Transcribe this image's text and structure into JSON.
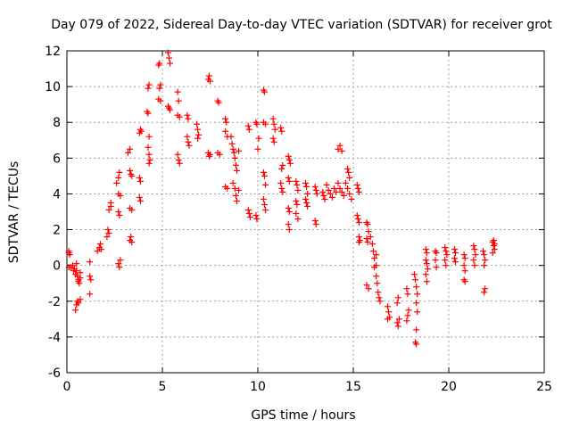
{
  "chart_data": {
    "type": "scatter",
    "title": "Day 079 of 2022, Sidereal Day-to-day VTEC variation (SDTVAR) for receiver grot",
    "xlabel": "GPS time / hours",
    "ylabel": "SDTVAR / TECUs",
    "xlim": [
      0,
      25
    ],
    "ylim": [
      -6,
      12
    ],
    "x_ticks": [
      0,
      5,
      10,
      15,
      20,
      25
    ],
    "y_ticks": [
      -6,
      -4,
      -2,
      0,
      2,
      4,
      6,
      8,
      10,
      12
    ],
    "grid": true,
    "marker": "+",
    "marker_color": "#ff0000",
    "series": [
      {
        "name": "SDTVAR",
        "points": [
          [
            0.1,
            0.8
          ],
          [
            0.1,
            0.7
          ],
          [
            0.15,
            0.6
          ],
          [
            0.1,
            -0.1
          ],
          [
            0.2,
            -0.1
          ],
          [
            0.3,
            0.0
          ],
          [
            0.35,
            -0.3
          ],
          [
            0.4,
            -0.2
          ],
          [
            0.45,
            -0.5
          ],
          [
            0.5,
            -0.3
          ],
          [
            0.5,
            0.1
          ],
          [
            0.55,
            -0.6
          ],
          [
            0.6,
            -0.8
          ],
          [
            0.6,
            -0.9
          ],
          [
            0.65,
            -1.0
          ],
          [
            0.7,
            -0.7
          ],
          [
            0.7,
            -0.4
          ],
          [
            0.45,
            -2.5
          ],
          [
            0.5,
            -2.2
          ],
          [
            0.55,
            -2.0
          ],
          [
            0.6,
            -2.1
          ],
          [
            0.7,
            -1.9
          ],
          [
            1.2,
            0.2
          ],
          [
            1.2,
            -0.6
          ],
          [
            1.25,
            -0.8
          ],
          [
            1.2,
            -1.6
          ],
          [
            1.6,
            0.8
          ],
          [
            1.7,
            1.0
          ],
          [
            1.75,
            1.2
          ],
          [
            1.8,
            0.9
          ],
          [
            2.1,
            1.6
          ],
          [
            2.15,
            2.0
          ],
          [
            2.2,
            1.8
          ],
          [
            2.2,
            3.1
          ],
          [
            2.3,
            3.5
          ],
          [
            2.3,
            3.3
          ],
          [
            2.6,
            4.6
          ],
          [
            2.7,
            4.9
          ],
          [
            2.75,
            5.2
          ],
          [
            2.7,
            4.0
          ],
          [
            2.8,
            3.9
          ],
          [
            2.7,
            3.0
          ],
          [
            2.75,
            2.8
          ],
          [
            2.7,
            0.1
          ],
          [
            2.75,
            -0.1
          ],
          [
            2.8,
            0.3
          ],
          [
            3.2,
            6.3
          ],
          [
            3.3,
            6.5
          ],
          [
            3.3,
            5.3
          ],
          [
            3.35,
            5.1
          ],
          [
            3.4,
            5.0
          ],
          [
            3.3,
            3.2
          ],
          [
            3.4,
            3.1
          ],
          [
            3.3,
            1.4
          ],
          [
            3.35,
            1.6
          ],
          [
            3.4,
            1.3
          ],
          [
            3.8,
            7.4
          ],
          [
            3.85,
            7.6
          ],
          [
            3.9,
            7.5
          ],
          [
            3.8,
            4.9
          ],
          [
            3.85,
            4.7
          ],
          [
            3.8,
            3.8
          ],
          [
            3.85,
            3.6
          ],
          [
            4.2,
            8.6
          ],
          [
            4.25,
            8.5
          ],
          [
            4.3,
            10.1
          ],
          [
            4.25,
            9.9
          ],
          [
            4.3,
            7.2
          ],
          [
            4.25,
            6.6
          ],
          [
            4.3,
            6.2
          ],
          [
            4.35,
            5.9
          ],
          [
            4.3,
            5.7
          ],
          [
            4.8,
            11.2
          ],
          [
            4.85,
            11.3
          ],
          [
            4.9,
            10.1
          ],
          [
            4.85,
            9.9
          ],
          [
            4.8,
            9.3
          ],
          [
            4.9,
            9.2
          ],
          [
            5.3,
            11.9
          ],
          [
            5.35,
            11.6
          ],
          [
            5.4,
            11.3
          ],
          [
            5.3,
            8.9
          ],
          [
            5.35,
            8.8
          ],
          [
            5.4,
            8.7
          ],
          [
            5.8,
            9.7
          ],
          [
            5.85,
            9.2
          ],
          [
            5.8,
            8.4
          ],
          [
            5.9,
            8.3
          ],
          [
            5.8,
            6.2
          ],
          [
            5.85,
            5.9
          ],
          [
            5.9,
            5.7
          ],
          [
            6.3,
            8.4
          ],
          [
            6.35,
            8.2
          ],
          [
            6.3,
            7.2
          ],
          [
            6.35,
            6.9
          ],
          [
            6.4,
            6.7
          ],
          [
            6.8,
            7.9
          ],
          [
            6.85,
            7.6
          ],
          [
            6.9,
            7.3
          ],
          [
            6.85,
            7.1
          ],
          [
            7.4,
            10.4
          ],
          [
            7.45,
            10.6
          ],
          [
            7.5,
            10.3
          ],
          [
            7.4,
            6.3
          ],
          [
            7.45,
            6.1
          ],
          [
            7.5,
            6.2
          ],
          [
            7.9,
            9.2
          ],
          [
            7.95,
            9.1
          ],
          [
            7.9,
            6.3
          ],
          [
            8.0,
            6.2
          ],
          [
            8.3,
            8.2
          ],
          [
            8.35,
            8.0
          ],
          [
            8.3,
            7.5
          ],
          [
            8.4,
            7.2
          ],
          [
            8.3,
            4.4
          ],
          [
            8.4,
            4.3
          ],
          [
            8.6,
            7.2
          ],
          [
            8.65,
            6.8
          ],
          [
            8.7,
            6.5
          ],
          [
            8.75,
            6.3
          ],
          [
            8.8,
            6.0
          ],
          [
            8.85,
            5.6
          ],
          [
            8.9,
            5.3
          ],
          [
            8.7,
            4.6
          ],
          [
            8.8,
            4.3
          ],
          [
            8.85,
            3.9
          ],
          [
            8.9,
            3.6
          ],
          [
            9.0,
            4.2
          ],
          [
            9.0,
            6.4
          ],
          [
            9.5,
            7.8
          ],
          [
            9.55,
            7.6
          ],
          [
            9.5,
            3.1
          ],
          [
            9.55,
            2.9
          ],
          [
            9.6,
            2.7
          ],
          [
            9.9,
            8.0
          ],
          [
            9.95,
            7.9
          ],
          [
            10.0,
            6.5
          ],
          [
            10.05,
            7.1
          ],
          [
            9.9,
            2.8
          ],
          [
            9.95,
            2.6
          ],
          [
            10.3,
            9.8
          ],
          [
            10.35,
            9.7
          ],
          [
            10.3,
            8.0
          ],
          [
            10.4,
            7.9
          ],
          [
            10.3,
            5.2
          ],
          [
            10.35,
            5.0
          ],
          [
            10.4,
            4.5
          ],
          [
            10.3,
            3.7
          ],
          [
            10.35,
            3.4
          ],
          [
            10.4,
            3.1
          ],
          [
            10.8,
            8.2
          ],
          [
            10.85,
            7.9
          ],
          [
            10.9,
            7.6
          ],
          [
            10.8,
            7.1
          ],
          [
            10.85,
            6.9
          ],
          [
            11.2,
            7.7
          ],
          [
            11.25,
            7.5
          ],
          [
            11.3,
            5.6
          ],
          [
            11.25,
            5.4
          ],
          [
            11.2,
            4.6
          ],
          [
            11.25,
            4.3
          ],
          [
            11.3,
            4.1
          ],
          [
            11.6,
            6.1
          ],
          [
            11.65,
            5.9
          ],
          [
            11.7,
            5.7
          ],
          [
            11.6,
            4.9
          ],
          [
            11.65,
            4.7
          ],
          [
            11.6,
            3.2
          ],
          [
            11.65,
            3.0
          ],
          [
            11.6,
            2.3
          ],
          [
            11.65,
            2.0
          ],
          [
            12.0,
            4.7
          ],
          [
            12.05,
            4.5
          ],
          [
            12.1,
            4.2
          ],
          [
            12.0,
            3.6
          ],
          [
            12.05,
            3.4
          ],
          [
            12.0,
            2.9
          ],
          [
            12.1,
            2.6
          ],
          [
            12.5,
            4.6
          ],
          [
            12.55,
            4.4
          ],
          [
            12.6,
            4.0
          ],
          [
            12.5,
            3.7
          ],
          [
            12.55,
            3.5
          ],
          [
            12.6,
            3.3
          ],
          [
            13.0,
            4.4
          ],
          [
            13.05,
            4.2
          ],
          [
            13.1,
            4.0
          ],
          [
            13.0,
            2.5
          ],
          [
            13.05,
            2.3
          ],
          [
            13.4,
            4.1
          ],
          [
            13.45,
            3.9
          ],
          [
            13.5,
            3.7
          ],
          [
            13.6,
            4.5
          ],
          [
            13.7,
            4.2
          ],
          [
            13.8,
            4.0
          ],
          [
            13.9,
            3.8
          ],
          [
            14.0,
            4.3
          ],
          [
            14.1,
            4.1
          ],
          [
            14.2,
            6.5
          ],
          [
            14.3,
            6.7
          ],
          [
            14.4,
            6.4
          ],
          [
            14.2,
            4.6
          ],
          [
            14.3,
            4.3
          ],
          [
            14.4,
            4.1
          ],
          [
            14.5,
            3.9
          ],
          [
            14.6,
            4.6
          ],
          [
            14.7,
            5.4
          ],
          [
            14.75,
            5.2
          ],
          [
            14.8,
            4.9
          ],
          [
            14.7,
            4.3
          ],
          [
            14.8,
            4.0
          ],
          [
            14.9,
            3.7
          ],
          [
            15.2,
            4.5
          ],
          [
            15.25,
            4.3
          ],
          [
            15.3,
            4.1
          ],
          [
            15.2,
            2.8
          ],
          [
            15.25,
            2.6
          ],
          [
            15.3,
            2.4
          ],
          [
            15.3,
            1.6
          ],
          [
            15.35,
            1.4
          ],
          [
            15.3,
            1.3
          ],
          [
            15.7,
            2.4
          ],
          [
            15.75,
            2.3
          ],
          [
            15.8,
            1.9
          ],
          [
            15.7,
            1.5
          ],
          [
            15.75,
            1.3
          ],
          [
            15.7,
            -1.1
          ],
          [
            15.8,
            -1.3
          ],
          [
            15.9,
            1.6
          ],
          [
            16.0,
            1.2
          ],
          [
            16.05,
            0.8
          ],
          [
            16.1,
            0.4
          ],
          [
            16.1,
            -0.1
          ],
          [
            16.2,
            0.6
          ],
          [
            16.2,
            -0.6
          ],
          [
            16.25,
            -1.0
          ],
          [
            16.3,
            -1.5
          ],
          [
            16.35,
            -1.8
          ],
          [
            16.4,
            -2.0
          ],
          [
            16.2,
            0.0
          ],
          [
            16.8,
            -2.3
          ],
          [
            16.85,
            -2.6
          ],
          [
            16.9,
            -2.9
          ],
          [
            16.8,
            -3.0
          ],
          [
            17.3,
            -3.2
          ],
          [
            17.35,
            -3.4
          ],
          [
            17.4,
            -3.0
          ],
          [
            17.3,
            -2.1
          ],
          [
            17.35,
            -1.8
          ],
          [
            17.8,
            -1.3
          ],
          [
            17.85,
            -1.6
          ],
          [
            17.9,
            -2.5
          ],
          [
            17.85,
            -2.8
          ],
          [
            17.8,
            -3.1
          ],
          [
            18.2,
            -0.5
          ],
          [
            18.25,
            -0.8
          ],
          [
            18.3,
            -1.2
          ],
          [
            18.35,
            -1.6
          ],
          [
            18.3,
            -2.1
          ],
          [
            18.35,
            -2.6
          ],
          [
            18.3,
            -3.6
          ],
          [
            18.25,
            -4.3
          ],
          [
            18.3,
            -4.4
          ],
          [
            18.8,
            0.9
          ],
          [
            18.85,
            0.7
          ],
          [
            18.8,
            0.3
          ],
          [
            18.85,
            0.1
          ],
          [
            18.9,
            -0.2
          ],
          [
            18.8,
            -0.5
          ],
          [
            18.85,
            -0.9
          ],
          [
            19.3,
            0.8
          ],
          [
            19.35,
            0.7
          ],
          [
            19.3,
            0.3
          ],
          [
            19.35,
            -0.1
          ],
          [
            19.8,
            1.0
          ],
          [
            19.85,
            0.8
          ],
          [
            19.9,
            0.6
          ],
          [
            19.8,
            0.3
          ],
          [
            19.85,
            0.0
          ],
          [
            20.3,
            0.9
          ],
          [
            20.35,
            0.7
          ],
          [
            20.3,
            0.4
          ],
          [
            20.35,
            0.2
          ],
          [
            20.8,
            0.6
          ],
          [
            20.85,
            0.4
          ],
          [
            20.8,
            0.0
          ],
          [
            20.85,
            -0.3
          ],
          [
            20.8,
            -0.8
          ],
          [
            20.85,
            -0.9
          ],
          [
            21.3,
            1.1
          ],
          [
            21.35,
            0.9
          ],
          [
            21.4,
            0.6
          ],
          [
            21.3,
            0.3
          ],
          [
            21.35,
            0.0
          ],
          [
            21.8,
            0.8
          ],
          [
            21.85,
            0.6
          ],
          [
            21.9,
            0.3
          ],
          [
            21.85,
            0.0
          ],
          [
            21.9,
            -1.3
          ],
          [
            21.85,
            -1.5
          ],
          [
            22.3,
            1.3
          ],
          [
            22.35,
            1.1
          ],
          [
            22.4,
            0.9
          ],
          [
            22.3,
            0.7
          ],
          [
            22.35,
            1.4
          ],
          [
            22.4,
            1.2
          ]
        ]
      }
    ]
  }
}
